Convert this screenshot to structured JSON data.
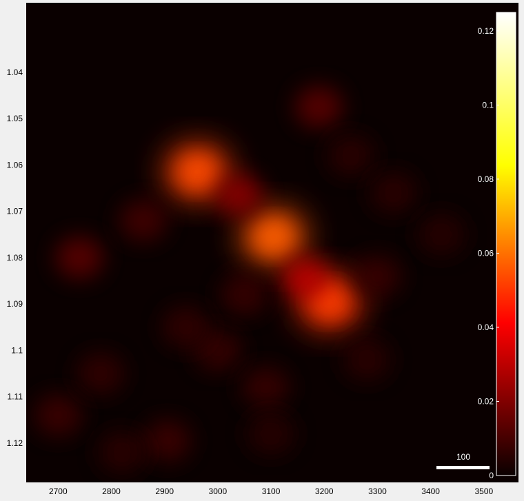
{
  "chart_data": {
    "type": "heatmap",
    "colormap": "hot",
    "background": "#0a0000",
    "xlim": [
      2640,
      3565
    ],
    "ylim": [
      1.025,
      1.1285
    ],
    "y_reversed": true,
    "x_ticks": [
      2700,
      2800,
      2900,
      3000,
      3100,
      3200,
      3300,
      3400,
      3500
    ],
    "x_tick_labels": [
      "2700",
      "2800",
      "2900",
      "3000",
      "3100",
      "3200",
      "3300",
      "3400",
      "3500"
    ],
    "y_ticks": [
      1.04,
      1.05,
      1.06,
      1.07,
      1.08,
      1.09,
      1.1,
      1.11,
      1.12
    ],
    "y_tick_labels": [
      "1.04",
      "1.05",
      "1.06",
      "1.07",
      "1.08",
      "1.09",
      "1.1",
      "1.11",
      "1.12"
    ],
    "colorbar": {
      "range": [
        0,
        0.125
      ],
      "ticks": [
        0,
        0.02,
        0.04,
        0.06,
        0.08,
        0.1,
        0.12
      ],
      "tick_labels": [
        "0",
        "0.02",
        "0.04",
        "0.06",
        "0.08",
        "0.1",
        "0.12"
      ],
      "placement": "right, inside plot"
    },
    "scalebar": {
      "label": "100",
      "length_x_units": 100,
      "placement": "bottom-right"
    },
    "hotspots": [
      {
        "x": 2962,
        "y": 1.0615,
        "intensity": 0.052
      },
      {
        "x": 3105,
        "y": 1.0755,
        "intensity": 0.055
      },
      {
        "x": 3210,
        "y": 1.0895,
        "intensity": 0.05
      },
      {
        "x": 3165,
        "y": 1.0845,
        "intensity": 0.03
      },
      {
        "x": 3040,
        "y": 1.0665,
        "intensity": 0.022
      },
      {
        "x": 3190,
        "y": 1.0475,
        "intensity": 0.014
      },
      {
        "x": 2740,
        "y": 1.08,
        "intensity": 0.014
      },
      {
        "x": 2860,
        "y": 1.072,
        "intensity": 0.01
      },
      {
        "x": 3300,
        "y": 1.084,
        "intensity": 0.008
      },
      {
        "x": 2700,
        "y": 1.114,
        "intensity": 0.009
      },
      {
        "x": 2905,
        "y": 1.1195,
        "intensity": 0.009
      },
      {
        "x": 3000,
        "y": 1.1,
        "intensity": 0.008
      },
      {
        "x": 3090,
        "y": 1.108,
        "intensity": 0.008
      },
      {
        "x": 2780,
        "y": 1.105,
        "intensity": 0.007
      },
      {
        "x": 3250,
        "y": 1.058,
        "intensity": 0.006
      },
      {
        "x": 3330,
        "y": 1.066,
        "intensity": 0.006
      },
      {
        "x": 3420,
        "y": 1.075,
        "intensity": 0.005
      },
      {
        "x": 3280,
        "y": 1.102,
        "intensity": 0.006
      },
      {
        "x": 2940,
        "y": 1.095,
        "intensity": 0.007
      },
      {
        "x": 2820,
        "y": 1.122,
        "intensity": 0.006
      },
      {
        "x": 3100,
        "y": 1.118,
        "intensity": 0.005
      },
      {
        "x": 3050,
        "y": 1.088,
        "intensity": 0.008
      }
    ]
  }
}
